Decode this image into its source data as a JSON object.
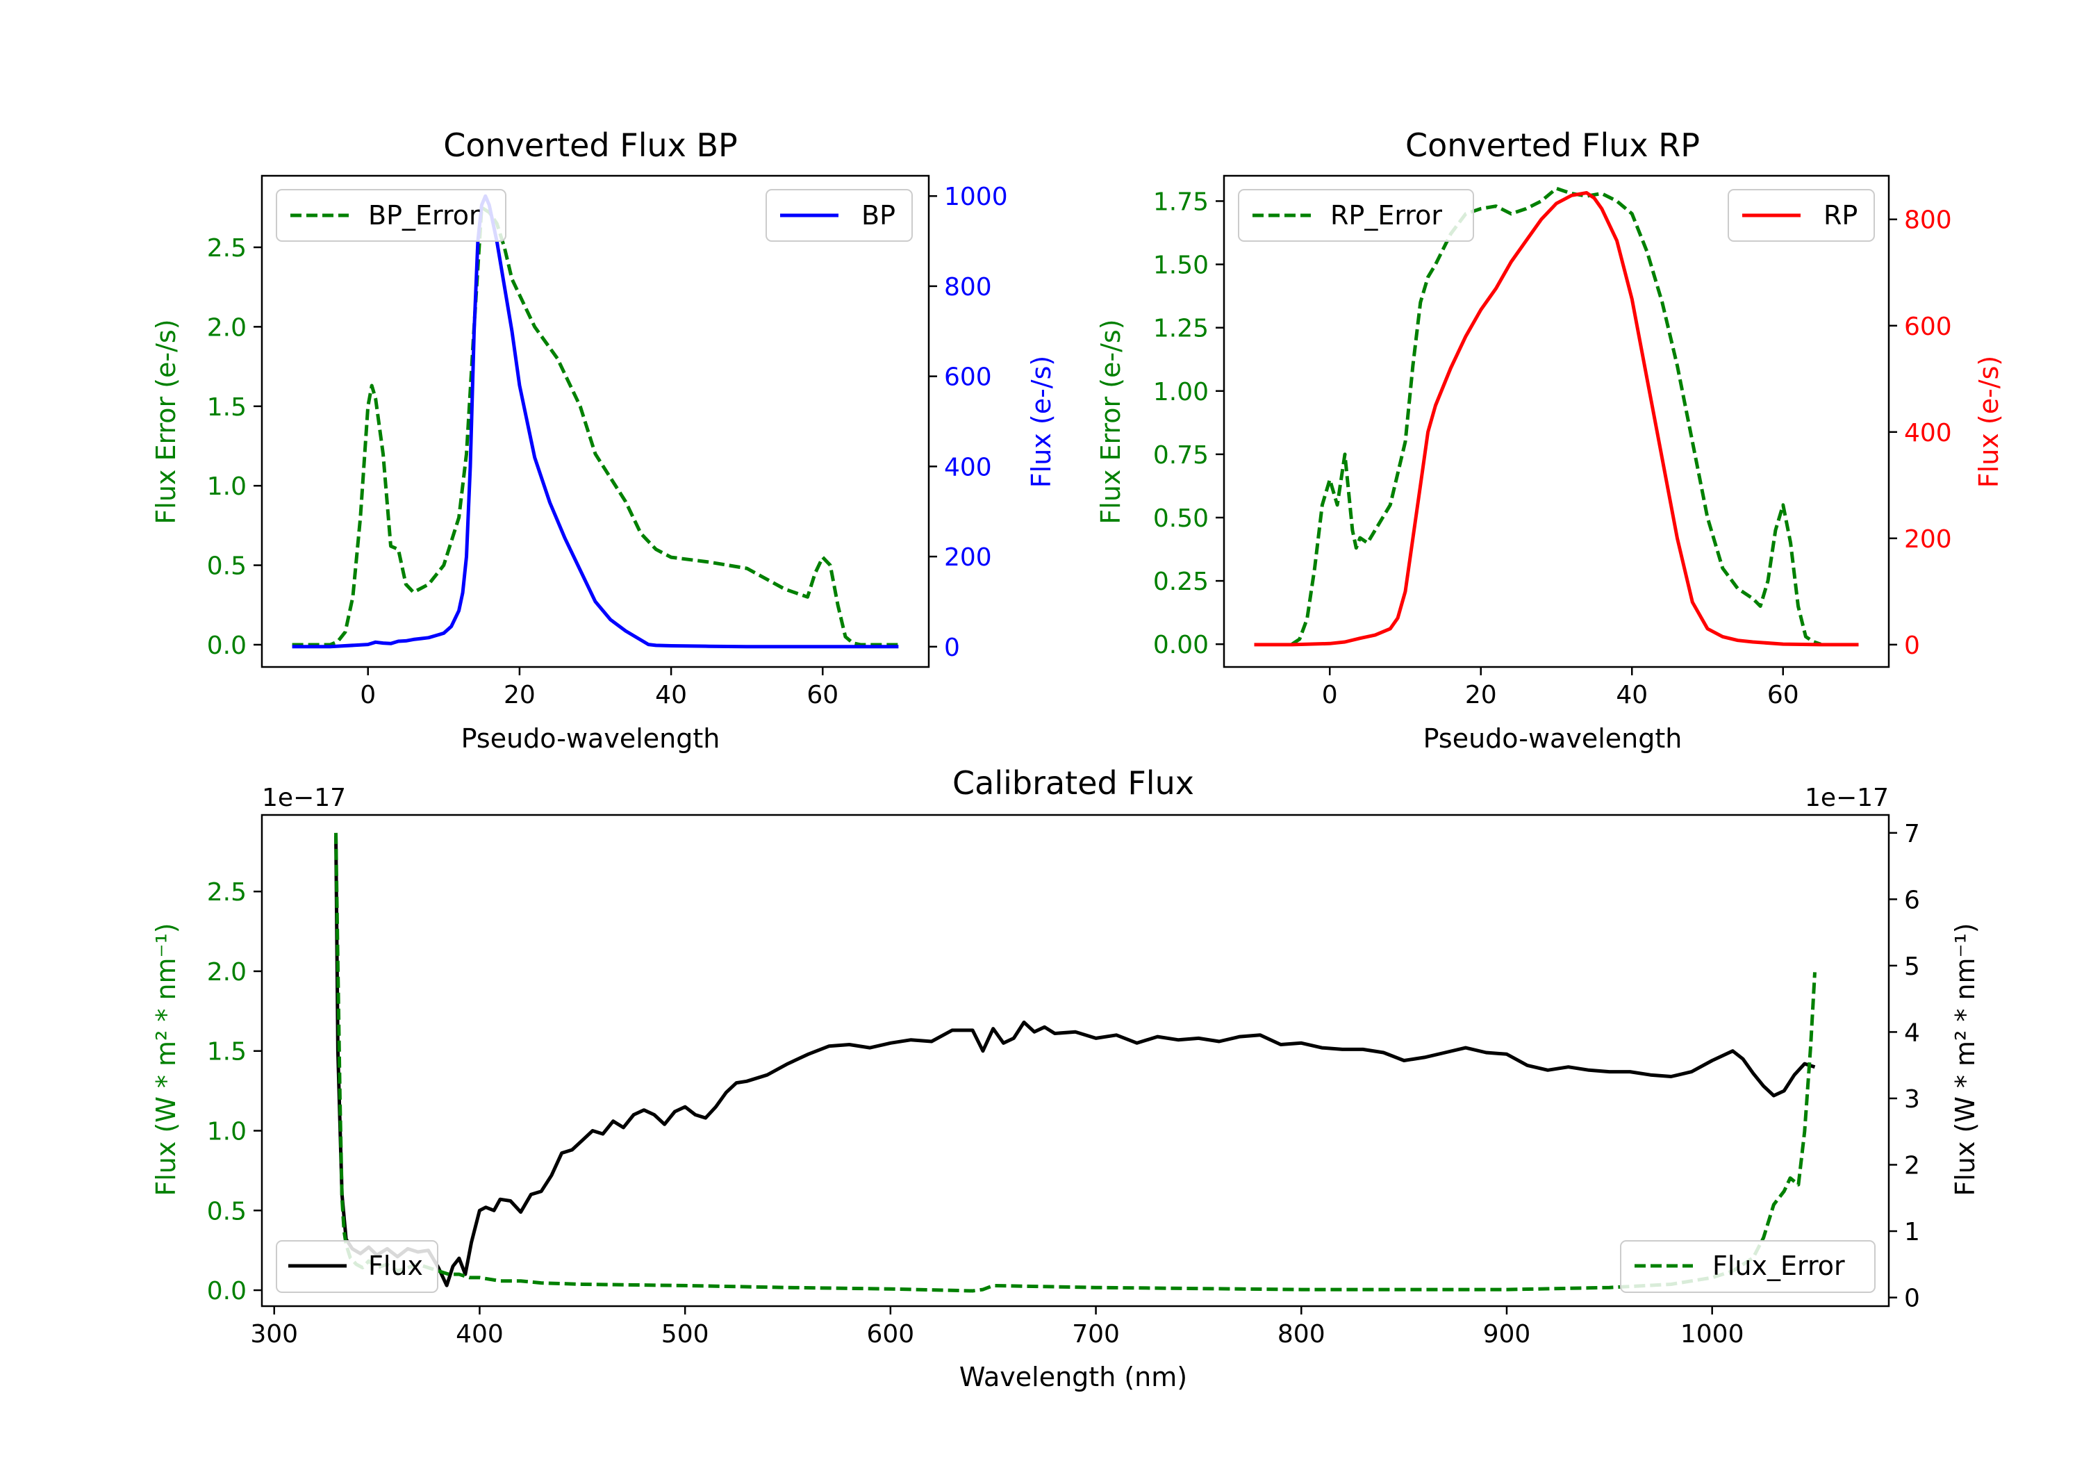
{
  "chart_data": [
    {
      "id": "bp",
      "type": "line",
      "title": "Converted Flux BP",
      "xlabel": "Pseudo-wavelength",
      "ylabel_left": "Flux Error (e-/s)",
      "ylabel_right": "Flux (e-/s)",
      "xlim": [
        -14,
        74
      ],
      "ylim_left": [
        -0.14,
        2.95
      ],
      "ylim_right": [
        -45,
        1045
      ],
      "xticks": [
        0,
        20,
        40,
        60
      ],
      "yticks_left": [
        0.0,
        0.5,
        1.0,
        1.5,
        2.0,
        2.5
      ],
      "yticks_right": [
        0,
        200,
        400,
        600,
        800,
        1000
      ],
      "colors": {
        "error": "#008000",
        "flux": "#0000ff"
      },
      "legend": {
        "error": "BP_Error",
        "flux": "BP"
      },
      "series": [
        {
          "name": "BP_Error",
          "axis": "left",
          "style": "dashed",
          "x": [
            -10,
            -5,
            -4,
            -3,
            -2,
            -1,
            0,
            0.5,
            1,
            2,
            3,
            4,
            5,
            6,
            8,
            10,
            12,
            13,
            14,
            15,
            16,
            17,
            18,
            19,
            20,
            22,
            25,
            28,
            30,
            32,
            34,
            36,
            38,
            40,
            45,
            50,
            55,
            58,
            59,
            60,
            61,
            62,
            63,
            64,
            65,
            70
          ],
          "y": [
            0,
            0,
            0.02,
            0.08,
            0.3,
            0.8,
            1.5,
            1.63,
            1.55,
            1.2,
            0.62,
            0.6,
            0.38,
            0.33,
            0.38,
            0.5,
            0.8,
            1.2,
            2.0,
            2.75,
            2.72,
            2.65,
            2.5,
            2.3,
            2.2,
            2.0,
            1.8,
            1.5,
            1.2,
            1.05,
            0.9,
            0.7,
            0.6,
            0.55,
            0.52,
            0.48,
            0.35,
            0.3,
            0.45,
            0.55,
            0.5,
            0.25,
            0.05,
            0.01,
            0,
            0
          ]
        },
        {
          "name": "BP",
          "axis": "right",
          "style": "solid",
          "x": [
            -10,
            -5,
            0,
            1,
            2,
            3,
            4,
            5,
            6,
            7,
            8,
            9,
            10,
            11,
            12,
            12.5,
            13,
            13.5,
            14,
            14.5,
            15,
            15.5,
            16,
            17,
            18,
            19,
            20,
            22,
            24,
            26,
            28,
            30,
            32,
            34,
            36,
            37,
            38,
            40,
            45,
            50,
            55,
            60,
            65,
            70
          ],
          "y": [
            0,
            0,
            5,
            10,
            8,
            7,
            12,
            13,
            16,
            18,
            20,
            25,
            30,
            45,
            80,
            120,
            200,
            400,
            700,
            900,
            980,
            1000,
            980,
            900,
            800,
            700,
            580,
            420,
            320,
            240,
            170,
            100,
            60,
            35,
            15,
            5,
            3,
            2,
            1,
            0,
            0,
            0,
            0,
            0
          ]
        }
      ]
    },
    {
      "id": "rp",
      "type": "line",
      "title": "Converted Flux RP",
      "xlabel": "Pseudo-wavelength",
      "ylabel_left": "Flux Error (e-/s)",
      "ylabel_right": "Flux (e-/s)",
      "xlim": [
        -14,
        74
      ],
      "ylim_left": [
        -0.09,
        1.85
      ],
      "ylim_right": [
        -42,
        882
      ],
      "xticks": [
        0,
        20,
        40,
        60
      ],
      "yticks_left": [
        0.0,
        0.25,
        0.5,
        0.75,
        1.0,
        1.25,
        1.5,
        1.75
      ],
      "yticks_right": [
        0,
        200,
        400,
        600,
        800
      ],
      "colors": {
        "error": "#008000",
        "flux": "#ff0000"
      },
      "legend": {
        "error": "RP_Error",
        "flux": "RP"
      },
      "series": [
        {
          "name": "RP_Error",
          "axis": "left",
          "style": "dashed",
          "x": [
            -5,
            -4,
            -3,
            -2,
            -1,
            0,
            0.5,
            1,
            2,
            3,
            3.5,
            4,
            5,
            6,
            7,
            8,
            10,
            11,
            12,
            13,
            14,
            16,
            18,
            20,
            22,
            24,
            26,
            28,
            30,
            32,
            34,
            36,
            38,
            40,
            42,
            44,
            46,
            48,
            50,
            52,
            54,
            56,
            57,
            58,
            59,
            60,
            61,
            62,
            63,
            64,
            65
          ],
          "y": [
            0,
            0.02,
            0.1,
            0.3,
            0.55,
            0.65,
            0.6,
            0.55,
            0.75,
            0.45,
            0.38,
            0.42,
            0.4,
            0.45,
            0.5,
            0.55,
            0.8,
            1.1,
            1.35,
            1.45,
            1.5,
            1.62,
            1.7,
            1.72,
            1.73,
            1.7,
            1.72,
            1.75,
            1.8,
            1.78,
            1.77,
            1.78,
            1.75,
            1.7,
            1.55,
            1.35,
            1.1,
            0.8,
            0.5,
            0.3,
            0.22,
            0.18,
            0.15,
            0.25,
            0.45,
            0.55,
            0.4,
            0.15,
            0.03,
            0.01,
            0
          ]
        },
        {
          "name": "RP",
          "axis": "right",
          "style": "solid",
          "x": [
            -10,
            -5,
            0,
            2,
            4,
            6,
            8,
            9,
            10,
            11,
            12,
            13,
            14,
            16,
            18,
            20,
            22,
            24,
            26,
            28,
            30,
            32,
            34,
            35,
            36,
            38,
            40,
            42,
            44,
            46,
            48,
            50,
            52,
            54,
            56,
            60,
            65,
            70
          ],
          "y": [
            0,
            0,
            2,
            5,
            12,
            18,
            30,
            50,
            100,
            200,
            300,
            400,
            450,
            520,
            580,
            630,
            670,
            720,
            760,
            800,
            830,
            845,
            850,
            840,
            820,
            760,
            650,
            500,
            350,
            200,
            80,
            30,
            15,
            8,
            5,
            1,
            0,
            0
          ]
        }
      ]
    },
    {
      "id": "cal",
      "type": "line",
      "title": "Calibrated Flux",
      "xlabel": "Wavelength (nm)",
      "ylabel_left": "Flux (W * m² * nm⁻¹)",
      "ylabel_right": "Flux (W * m² * nm⁻¹)",
      "offset_left": "1e−17",
      "offset_right": "1e−17",
      "xlim": [
        294,
        1086
      ],
      "ylim_left": [
        -0.1,
        2.98
      ],
      "ylim_right": [
        -0.13,
        7.27
      ],
      "xticks": [
        300,
        400,
        500,
        600,
        700,
        800,
        900,
        1000
      ],
      "yticks_left": [
        0.0,
        0.5,
        1.0,
        1.5,
        2.0,
        2.5
      ],
      "yticks_right": [
        0,
        1,
        2,
        3,
        4,
        5,
        6,
        7
      ],
      "colors": {
        "error": "#008000",
        "flux": "#000000"
      },
      "legend": {
        "error": "Flux_Error",
        "flux": "Flux"
      },
      "series": [
        {
          "name": "Flux",
          "axis": "left",
          "style": "solid",
          "x": [
            330,
            331,
            333,
            335,
            338,
            342,
            346,
            350,
            355,
            360,
            365,
            370,
            375,
            380,
            384,
            387,
            390,
            393,
            396,
            400,
            403,
            407,
            410,
            415,
            420,
            425,
            430,
            435,
            440,
            445,
            450,
            455,
            460,
            465,
            470,
            475,
            480,
            485,
            490,
            495,
            500,
            505,
            510,
            515,
            520,
            525,
            530,
            540,
            550,
            560,
            570,
            580,
            590,
            600,
            610,
            620,
            630,
            640,
            645,
            650,
            655,
            660,
            665,
            670,
            675,
            680,
            690,
            700,
            710,
            720,
            730,
            740,
            750,
            760,
            770,
            780,
            790,
            800,
            810,
            820,
            830,
            840,
            850,
            860,
            870,
            880,
            890,
            900,
            910,
            920,
            930,
            940,
            950,
            960,
            970,
            980,
            990,
            1000,
            1010,
            1015,
            1020,
            1025,
            1030,
            1035,
            1040,
            1045,
            1050
          ],
          "y": [
            2.85,
            1.5,
            0.6,
            0.32,
            0.26,
            0.23,
            0.27,
            0.22,
            0.26,
            0.21,
            0.26,
            0.24,
            0.25,
            0.14,
            0.03,
            0.15,
            0.2,
            0.1,
            0.3,
            0.5,
            0.52,
            0.5,
            0.57,
            0.56,
            0.49,
            0.6,
            0.62,
            0.72,
            0.86,
            0.88,
            0.94,
            1.0,
            0.98,
            1.06,
            1.02,
            1.1,
            1.13,
            1.1,
            1.04,
            1.12,
            1.15,
            1.1,
            1.08,
            1.15,
            1.24,
            1.3,
            1.31,
            1.35,
            1.42,
            1.48,
            1.53,
            1.54,
            1.52,
            1.55,
            1.57,
            1.56,
            1.63,
            1.63,
            1.5,
            1.64,
            1.55,
            1.58,
            1.68,
            1.62,
            1.65,
            1.61,
            1.62,
            1.58,
            1.6,
            1.55,
            1.59,
            1.57,
            1.58,
            1.56,
            1.59,
            1.6,
            1.54,
            1.55,
            1.52,
            1.51,
            1.51,
            1.49,
            1.44,
            1.46,
            1.49,
            1.52,
            1.49,
            1.48,
            1.41,
            1.38,
            1.4,
            1.38,
            1.37,
            1.37,
            1.35,
            1.34,
            1.37,
            1.44,
            1.5,
            1.45,
            1.36,
            1.28,
            1.22,
            1.25,
            1.35,
            1.42,
            1.4
          ]
        },
        {
          "name": "Flux_Error",
          "axis": "right",
          "style": "dashed",
          "x": [
            330,
            331,
            332,
            333,
            334,
            335,
            337,
            340,
            343,
            346,
            350,
            355,
            360,
            365,
            370,
            375,
            380,
            385,
            390,
            395,
            400,
            410,
            420,
            430,
            450,
            500,
            550,
            600,
            640,
            645,
            650,
            700,
            800,
            900,
            950,
            980,
            1000,
            1010,
            1020,
            1025,
            1030,
            1035,
            1038,
            1042,
            1045,
            1048,
            1050
          ],
          "y": [
            7.0,
            5.0,
            3.0,
            1.5,
            1.0,
            0.8,
            0.6,
            0.5,
            0.45,
            0.55,
            0.45,
            0.5,
            0.4,
            0.45,
            0.5,
            0.45,
            0.4,
            0.35,
            0.35,
            0.3,
            0.3,
            0.25,
            0.25,
            0.22,
            0.2,
            0.18,
            0.15,
            0.13,
            0.1,
            0.12,
            0.18,
            0.15,
            0.12,
            0.12,
            0.15,
            0.2,
            0.3,
            0.4,
            0.6,
            0.9,
            1.4,
            1.6,
            1.8,
            1.7,
            2.5,
            3.8,
            4.9
          ]
        }
      ]
    }
  ]
}
